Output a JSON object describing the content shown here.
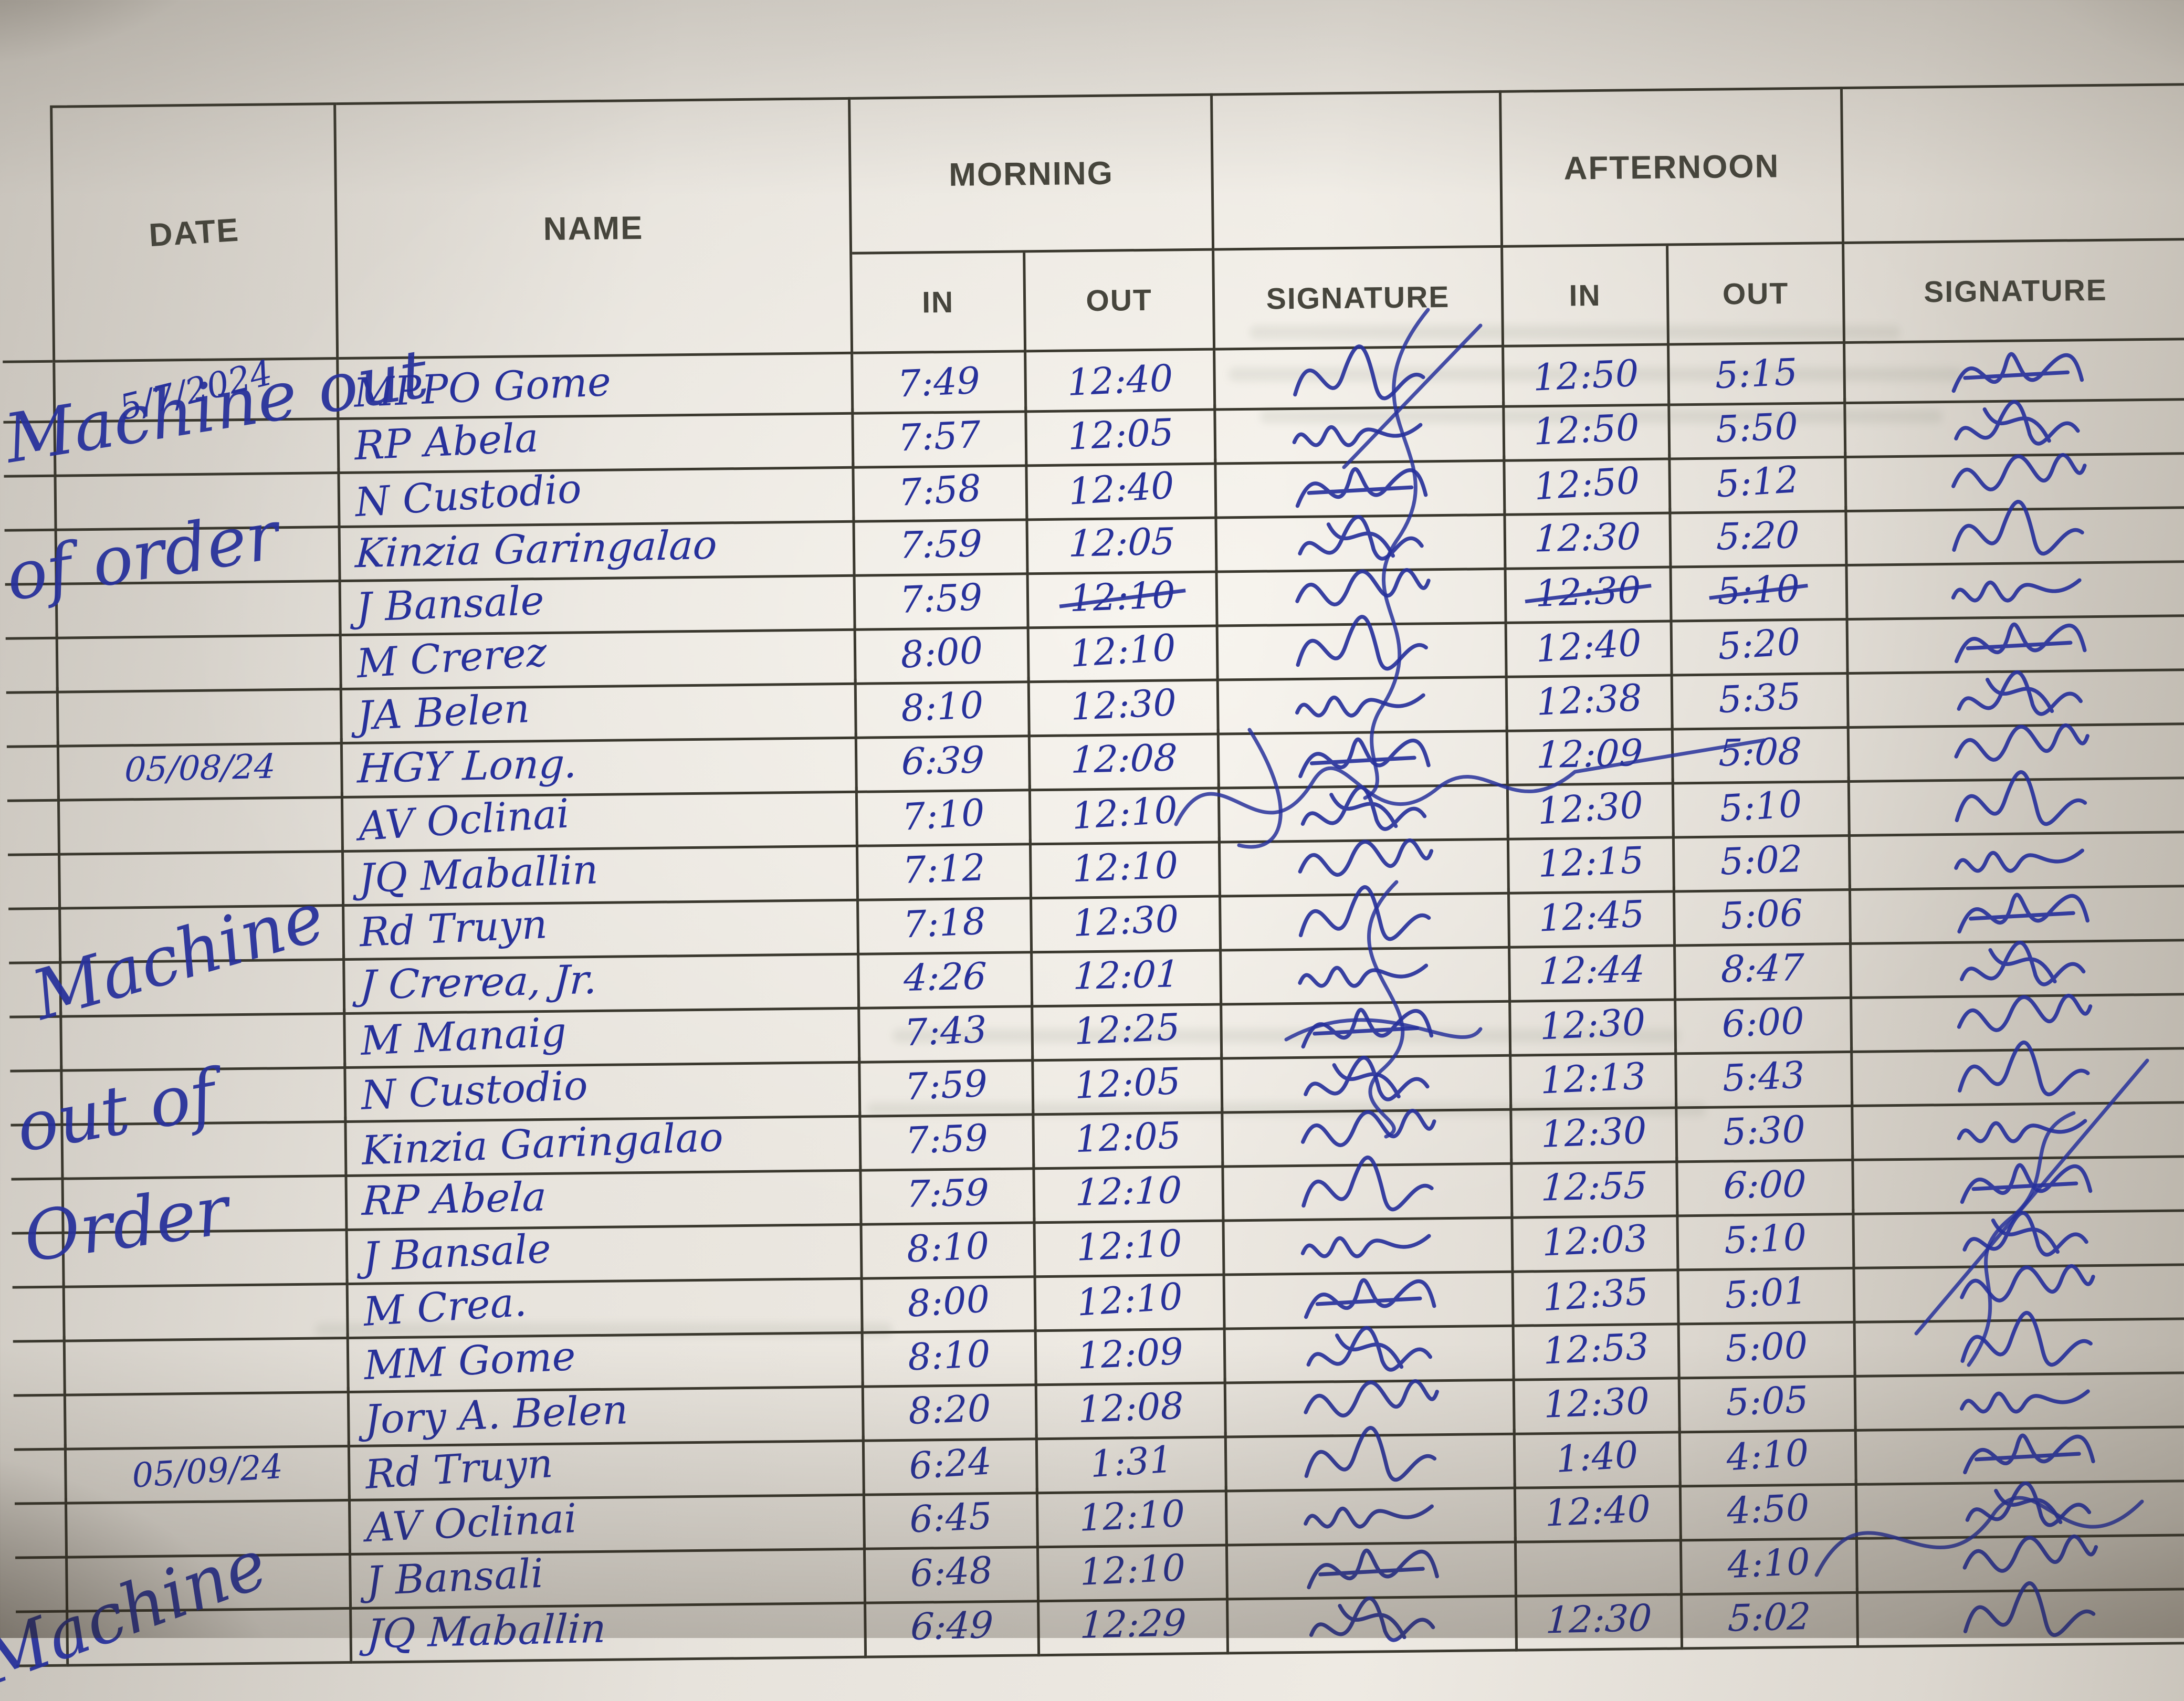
{
  "sheet": {
    "kind": "handwritten attendance logbook page",
    "ink_color": "#27319b",
    "rule_color": "#3a382e",
    "header": {
      "date": "DATE",
      "name": "NAME",
      "morning": "MORNING",
      "afternoon": "AFTERNOON",
      "in": "IN",
      "out": "OUT",
      "signature": "SIGNATURE"
    },
    "annotations": [
      {
        "text": "Machine out"
      },
      {
        "text": "of  order"
      },
      {
        "text": "Machine"
      },
      {
        "text": "out of"
      },
      {
        "text": "Order"
      },
      {
        "text": "Machine"
      }
    ],
    "rows": [
      {
        "date": "5/7/2024",
        "name": "MPPO Gome",
        "morning_in": "7:49",
        "morning_out": "12:40",
        "afternoon_in": "12:50",
        "afternoon_out": "5:15",
        "struck": []
      },
      {
        "date": "",
        "name": "RP Abela",
        "morning_in": "7:57",
        "morning_out": "12:05",
        "afternoon_in": "12:50",
        "afternoon_out": "5:50",
        "struck": []
      },
      {
        "date": "",
        "name": "N Custodio",
        "morning_in": "7:58",
        "morning_out": "12:40",
        "afternoon_in": "12:50",
        "afternoon_out": "5:12",
        "struck": []
      },
      {
        "date": "",
        "name": "Kinzia Garingalao",
        "morning_in": "7:59",
        "morning_out": "12:05",
        "afternoon_in": "12:30",
        "afternoon_out": "5:20",
        "struck": []
      },
      {
        "date": "",
        "name": "J Bansale",
        "morning_in": "7:59",
        "morning_out": "12:10",
        "afternoon_in": "12:30",
        "afternoon_out": "5:10",
        "struck": [
          "morning_out",
          "afternoon_in",
          "afternoon_out"
        ]
      },
      {
        "date": "",
        "name": "M Crerez",
        "morning_in": "8:00",
        "morning_out": "12:10",
        "afternoon_in": "12:40",
        "afternoon_out": "5:20",
        "struck": []
      },
      {
        "date": "",
        "name": "JA Belen",
        "morning_in": "8:10",
        "morning_out": "12:30",
        "afternoon_in": "12:38",
        "afternoon_out": "5:35",
        "struck": []
      },
      {
        "date": "05/08/24",
        "name": "HGY Long.",
        "morning_in": "6:39",
        "morning_out": "12:08",
        "afternoon_in": "12:09",
        "afternoon_out": "5:08",
        "struck": []
      },
      {
        "date": "",
        "name": "AV Oclinai",
        "morning_in": "7:10",
        "morning_out": "12:10",
        "afternoon_in": "12:30",
        "afternoon_out": "5:10",
        "struck": []
      },
      {
        "date": "",
        "name": "JQ Maballin",
        "morning_in": "7:12",
        "morning_out": "12:10",
        "afternoon_in": "12:15",
        "afternoon_out": "5:02",
        "struck": []
      },
      {
        "date": "",
        "name": "Rd Truyn",
        "morning_in": "7:18",
        "morning_out": "12:30",
        "afternoon_in": "12:45",
        "afternoon_out": "5:06",
        "struck": []
      },
      {
        "date": "",
        "name": "J Crerea, Jr.",
        "morning_in": "4:26",
        "morning_out": "12:01",
        "afternoon_in": "12:44",
        "afternoon_out": "8:47",
        "struck": []
      },
      {
        "date": "",
        "name": "M Manaig",
        "morning_in": "7:43",
        "morning_out": "12:25",
        "afternoon_in": "12:30",
        "afternoon_out": "6:00",
        "struck": []
      },
      {
        "date": "",
        "name": "N Custodio",
        "morning_in": "7:59",
        "morning_out": "12:05",
        "afternoon_in": "12:13",
        "afternoon_out": "5:43",
        "struck": []
      },
      {
        "date": "",
        "name": "Kinzia Garingalao",
        "morning_in": "7:59",
        "morning_out": "12:05",
        "afternoon_in": "12:30",
        "afternoon_out": "5:30",
        "struck": []
      },
      {
        "date": "",
        "name": "RP Abela",
        "morning_in": "7:59",
        "morning_out": "12:10",
        "afternoon_in": "12:55",
        "afternoon_out": "6:00",
        "struck": []
      },
      {
        "date": "",
        "name": "J Bansale",
        "morning_in": "8:10",
        "morning_out": "12:10",
        "afternoon_in": "12:03",
        "afternoon_out": "5:10",
        "struck": []
      },
      {
        "date": "",
        "name": "M Crea.",
        "morning_in": "8:00",
        "morning_out": "12:10",
        "afternoon_in": "12:35",
        "afternoon_out": "5:01",
        "struck": []
      },
      {
        "date": "",
        "name": "MM Gome",
        "morning_in": "8:10",
        "morning_out": "12:09",
        "afternoon_in": "12:53",
        "afternoon_out": "5:00",
        "struck": []
      },
      {
        "date": "",
        "name": "Jory A. Belen",
        "morning_in": "8:20",
        "morning_out": "12:08",
        "afternoon_in": "12:30",
        "afternoon_out": "5:05",
        "struck": []
      },
      {
        "date": "05/09/24",
        "name": "Rd Truyn",
        "morning_in": "6:24",
        "morning_out": "1:31",
        "afternoon_in": "1:40",
        "afternoon_out": "4:10",
        "struck": []
      },
      {
        "date": "",
        "name": "AV Oclinai",
        "morning_in": "6:45",
        "morning_out": "12:10",
        "afternoon_in": "12:40",
        "afternoon_out": "4:50",
        "struck": []
      },
      {
        "date": "",
        "name": "J Bansali",
        "morning_in": "6:48",
        "morning_out": "12:10",
        "afternoon_in": "",
        "afternoon_out": "4:10",
        "struck": []
      },
      {
        "date": "",
        "name": "JQ Maballin",
        "morning_in": "6:49",
        "morning_out": "12:29",
        "afternoon_in": "12:30",
        "afternoon_out": "5:02",
        "struck": []
      }
    ]
  }
}
